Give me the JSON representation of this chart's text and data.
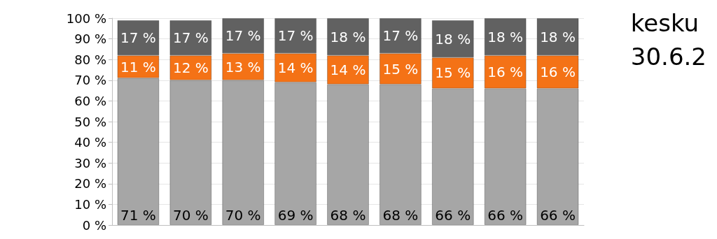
{
  "chart_data": {
    "type": "bar",
    "stacked": true,
    "title": "kesku\n30.6.2",
    "categories": [
      null,
      null,
      null,
      null,
      null,
      null,
      null,
      null,
      null
    ],
    "series": [
      {
        "color": "#a6a6a6",
        "values": [
          71,
          70,
          70,
          69,
          68,
          68,
          66,
          66,
          66
        ],
        "value_labels": [
          "71 %",
          "70 %",
          "70 %",
          "69 %",
          "68 %",
          "68 %",
          "66 %",
          "66 %",
          "66 %"
        ]
      },
      {
        "color": "#f47216",
        "values": [
          11,
          12,
          13,
          14,
          14,
          15,
          15,
          16,
          16
        ],
        "value_labels": [
          "11 %",
          "12 %",
          "13 %",
          "14 %",
          "14 %",
          "15 %",
          "15 %",
          "16 %",
          "16 %"
        ]
      },
      {
        "color": "#616161",
        "values": [
          17,
          17,
          17,
          17,
          18,
          17,
          18,
          18,
          18
        ],
        "value_labels": [
          "17 %",
          "17 %",
          "17 %",
          "17 %",
          "18 %",
          "17 %",
          "18 %",
          "18 %",
          "18 %"
        ]
      }
    ],
    "ylim": [
      0,
      100
    ],
    "yticks": [
      {
        "value": 0,
        "label": "0 %"
      },
      {
        "value": 10,
        "label": "10 %"
      },
      {
        "value": 20,
        "label": "20 %"
      },
      {
        "value": 30,
        "label": "30 %"
      },
      {
        "value": 40,
        "label": "40 %"
      },
      {
        "value": 50,
        "label": "50 %"
      },
      {
        "value": 60,
        "label": "60 %"
      },
      {
        "value": 70,
        "label": "70 %"
      },
      {
        "value": 80,
        "label": "80 %"
      },
      {
        "value": 90,
        "label": "90 %"
      },
      {
        "value": 100,
        "label": "100 %"
      }
    ],
    "grid": "y"
  }
}
